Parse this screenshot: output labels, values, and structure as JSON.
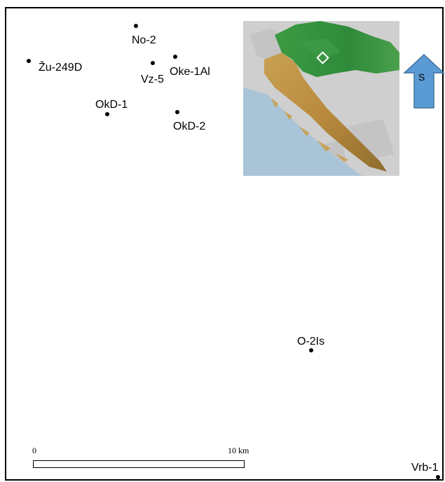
{
  "map": {
    "wells": [
      {
        "id": "no-2",
        "label": "No-2"
      },
      {
        "id": "zu-249d",
        "label": "Žu-249D"
      },
      {
        "id": "vz-5",
        "label": "Vz-5"
      },
      {
        "id": "oke-1al",
        "label": "Oke-1Al"
      },
      {
        "id": "okd-1",
        "label": "OkD-1"
      },
      {
        "id": "okd-2",
        "label": "OkD-2"
      },
      {
        "id": "o-2is",
        "label": "O-2Is"
      },
      {
        "id": "vrb-1",
        "label": "Vrb-1"
      }
    ],
    "north_arrow": {
      "label": "S",
      "color": "#5b9bd5",
      "stroke": "#41719c"
    },
    "scale_bar": {
      "start_label": "0",
      "end_label": "10 km"
    },
    "inset": {
      "sea_color": "#a9c4d6",
      "lowland_color": "#2f8a3a",
      "highland_color": "#b89a4e"
    }
  }
}
